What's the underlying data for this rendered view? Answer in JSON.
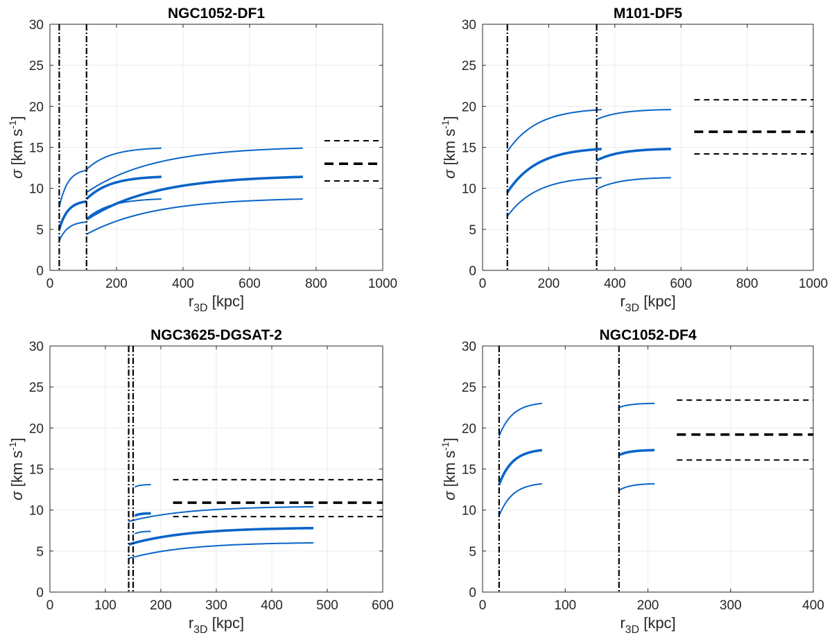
{
  "chart_data": [
    {
      "type": "line",
      "title": "NGC1052-DF1",
      "xlabel_main": "r",
      "xlabel_sub": "3D",
      "xlabel_unit": " [kpc]",
      "ylabel_symbol": "σ",
      "ylabel_main": " [km s",
      "ylabel_sup": "-1",
      "ylabel_end": "]",
      "xlim": [
        0,
        1000
      ],
      "ylim": [
        0,
        30
      ],
      "xticks": [
        0,
        200,
        400,
        600,
        800,
        1000
      ],
      "yticks": [
        0,
        5,
        10,
        15,
        20,
        25,
        30
      ],
      "vlines": [
        28,
        110
      ],
      "observed": {
        "x": [
          825,
          1000
        ],
        "center": 13.0,
        "upper": 15.8,
        "lower": 10.9
      },
      "curve_groups": [
        {
          "x": [
            28,
            110
          ],
          "bold": [
            5.0,
            8.4
          ],
          "upper": [
            7.7,
            12.2
          ],
          "lower": [
            3.6,
            5.9
          ]
        },
        {
          "x": [
            110,
            335
          ],
          "bold": [
            8.7,
            11.4
          ],
          "upper": [
            12.3,
            14.9
          ],
          "lower": [
            6.3,
            8.7
          ]
        },
        {
          "x": [
            110,
            760
          ],
          "bold": [
            6.2,
            11.4
          ],
          "upper": [
            9.5,
            14.9
          ],
          "lower": [
            4.4,
            8.7
          ]
        }
      ]
    },
    {
      "type": "line",
      "title": "M101-DF5",
      "xlabel_main": "r",
      "xlabel_sub": "3D",
      "xlabel_unit": " [kpc]",
      "ylabel_symbol": "σ",
      "ylabel_main": " [km s",
      "ylabel_sup": "-1",
      "ylabel_end": "]",
      "xlim": [
        0,
        1000
      ],
      "ylim": [
        0,
        30
      ],
      "xticks": [
        0,
        200,
        400,
        600,
        800,
        1000
      ],
      "yticks": [
        0,
        5,
        10,
        15,
        20,
        25,
        30
      ],
      "vlines": [
        75,
        345
      ],
      "observed": {
        "x": [
          640,
          1000
        ],
        "center": 16.9,
        "upper": 20.8,
        "lower": 14.2
      },
      "curve_groups": [
        {
          "x": [
            75,
            360
          ],
          "bold": [
            9.5,
            14.8
          ],
          "upper": [
            14.5,
            19.6
          ],
          "lower": [
            6.6,
            11.3
          ]
        },
        {
          "x": [
            345,
            570
          ],
          "bold": [
            13.4,
            14.8
          ],
          "upper": [
            18.4,
            19.6
          ],
          "lower": [
            9.9,
            11.3
          ]
        }
      ]
    },
    {
      "type": "line",
      "title": "NGC3625-DGSAT-2",
      "xlabel_main": "r",
      "xlabel_sub": "3D",
      "xlabel_unit": " [kpc]",
      "ylabel_symbol": "σ",
      "ylabel_main": " [km s",
      "ylabel_sup": "-1",
      "ylabel_end": "]",
      "xlim": [
        0,
        600
      ],
      "ylim": [
        0,
        30
      ],
      "xticks": [
        0,
        100,
        200,
        300,
        400,
        500,
        600
      ],
      "yticks": [
        0,
        5,
        10,
        15,
        20,
        25,
        30
      ],
      "vlines": [
        142,
        150
      ],
      "observed": {
        "x": [
          222,
          600
        ],
        "center": 10.9,
        "upper": 13.7,
        "lower": 9.2
      },
      "curve_groups": [
        {
          "x": [
            153,
            182
          ],
          "bold": [
            9.3,
            9.6
          ],
          "upper": [
            12.8,
            13.1
          ],
          "lower": [
            7.1,
            7.4
          ]
        },
        {
          "x": [
            142,
            475
          ],
          "bold": [
            5.8,
            7.8
          ],
          "upper": [
            8.6,
            10.4
          ],
          "lower": [
            4.1,
            6.0
          ]
        }
      ]
    },
    {
      "type": "line",
      "title": "NGC1052-DF4",
      "xlabel_main": "r",
      "xlabel_sub": "3D",
      "xlabel_unit": " [kpc]",
      "ylabel_symbol": "σ",
      "ylabel_main": " [km s",
      "ylabel_sup": "-1",
      "ylabel_end": "]",
      "xlim": [
        0,
        400
      ],
      "ylim": [
        0,
        30
      ],
      "xticks": [
        0,
        100,
        200,
        300,
        400
      ],
      "yticks": [
        0,
        5,
        10,
        15,
        20,
        25,
        30
      ],
      "vlines": [
        20,
        165
      ],
      "observed": {
        "x": [
          235,
          400
        ],
        "center": 19.2,
        "upper": 23.4,
        "lower": 16.1
      },
      "curve_groups": [
        {
          "x": [
            20,
            72
          ],
          "bold": [
            13.1,
            17.3
          ],
          "upper": [
            19.0,
            23.0
          ],
          "lower": [
            9.3,
            13.2
          ]
        },
        {
          "x": [
            165,
            208
          ],
          "bold": [
            16.7,
            17.3
          ],
          "upper": [
            22.5,
            23.0
          ],
          "lower": [
            12.4,
            13.2
          ]
        }
      ]
    }
  ],
  "colors": {
    "model": "#0a64c8",
    "observed": "#000000",
    "vline": "#000000"
  }
}
